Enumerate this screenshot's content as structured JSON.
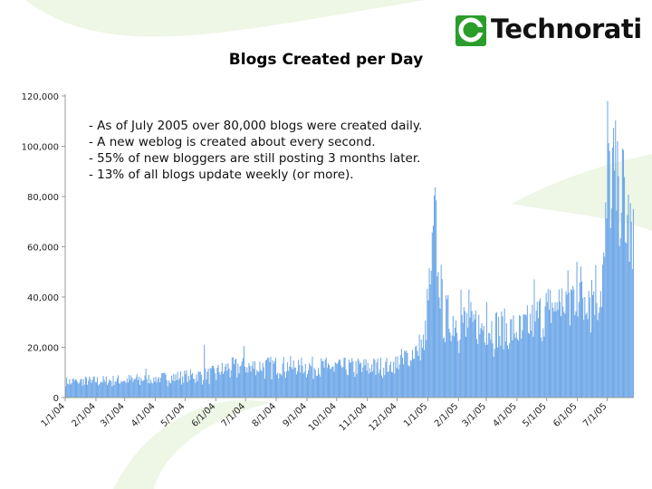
{
  "brand": {
    "name": "Technorati",
    "accent": "#2a9d2a"
  },
  "chart_data": {
    "type": "bar",
    "title": "Blogs Created per Day",
    "xlabel": "",
    "ylabel": "",
    "ylim": [
      0,
      120000
    ],
    "y_ticks": [
      "0",
      "20,000",
      "40,000",
      "60,000",
      "80,000",
      "100,000",
      "120,000"
    ],
    "y_tick_values": [
      0,
      20000,
      40000,
      60000,
      80000,
      100000,
      120000
    ],
    "x_ticks": [
      "1/1/04",
      "2/1/04",
      "3/1/04",
      "4/1/04",
      "5/1/04",
      "6/1/04",
      "7/1/04",
      "8/1/04",
      "9/1/04",
      "10/1/04",
      "11/1/04",
      "12/1/04",
      "1/1/05",
      "2/1/05",
      "3/1/05",
      "4/1/05",
      "5/1/05",
      "6/1/05",
      "7/1/05"
    ],
    "x_tick_dates": [
      "2004-01-01",
      "2004-02-01",
      "2004-03-01",
      "2004-04-01",
      "2004-05-01",
      "2004-06-01",
      "2004-07-01",
      "2004-08-01",
      "2004-09-01",
      "2004-10-01",
      "2004-11-01",
      "2004-12-01",
      "2005-01-01",
      "2005-02-01",
      "2005-03-01",
      "2005-04-01",
      "2005-05-01",
      "2005-06-01",
      "2005-07-01"
    ],
    "x_range": [
      "2004-01-01",
      "2005-07-27"
    ],
    "bar_color": "#6fa8e8",
    "grid": false,
    "series": [
      {
        "date_start": "2004-01-01",
        "interval": "1 day",
        "approximate_level": [
          {
            "date": "2004-01-01",
            "value": 6500
          },
          {
            "date": "2004-02-15",
            "value": 7000
          },
          {
            "date": "2004-04-01",
            "value": 7800
          },
          {
            "date": "2004-05-25",
            "value": 9500
          },
          {
            "date": "2004-06-15",
            "value": 12500
          },
          {
            "date": "2004-08-01",
            "value": 13000
          },
          {
            "date": "2004-10-15",
            "value": 12500
          },
          {
            "date": "2004-11-25",
            "value": 13000
          },
          {
            "date": "2004-12-15",
            "value": 18000
          },
          {
            "date": "2004-12-28",
            "value": 22000
          },
          {
            "date": "2005-01-08",
            "value": 70000
          },
          {
            "date": "2005-01-16",
            "value": 33000
          },
          {
            "date": "2005-02-15",
            "value": 30000
          },
          {
            "date": "2005-03-15",
            "value": 28000
          },
          {
            "date": "2005-04-05",
            "value": 27000
          },
          {
            "date": "2005-05-01",
            "value": 36000
          },
          {
            "date": "2005-06-01",
            "value": 43000
          },
          {
            "date": "2005-06-25",
            "value": 45000
          },
          {
            "date": "2005-07-03",
            "value": 90000
          },
          {
            "date": "2005-07-15",
            "value": 85000
          },
          {
            "date": "2005-07-27",
            "value": 60000
          }
        ],
        "peaks": [
          {
            "date": "2004-03-22",
            "value": 11500
          },
          {
            "date": "2004-05-20",
            "value": 21000
          },
          {
            "date": "2004-06-29",
            "value": 20500
          },
          {
            "date": "2005-01-09",
            "value": 78500
          },
          {
            "date": "2005-02-03",
            "value": 43000
          },
          {
            "date": "2005-02-11",
            "value": 43000
          },
          {
            "date": "2005-03-01",
            "value": 38000
          },
          {
            "date": "2005-04-18",
            "value": 47000
          },
          {
            "date": "2005-05-13",
            "value": 43000
          },
          {
            "date": "2005-05-31",
            "value": 54000
          },
          {
            "date": "2005-07-01",
            "value": 118000
          },
          {
            "date": "2005-07-11",
            "value": 102000
          }
        ]
      }
    ]
  },
  "annotation_lines": [
    "- As of July 2005 over 80,000 blogs were created daily.",
    "- A new weblog is created about every second.",
    "- 55% of new bloggers are still posting 3 months later.",
    "- 13% of all blogs update weekly (or more)."
  ]
}
